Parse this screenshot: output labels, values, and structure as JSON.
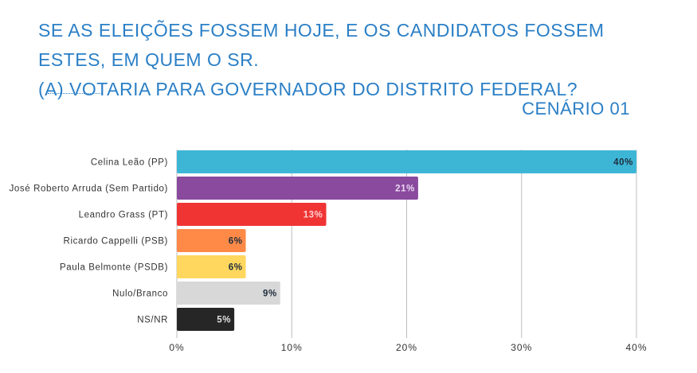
{
  "title_line1": "SE AS ELEIÇÕES FOSSEM HOJE, E OS CANDIDATOS FOSSEM ESTES, EM QUEM O SR.",
  "title_line2": "(A) VOTARIA PARA GOVERNADOR DO DISTRITO FEDERAL?",
  "subtitle": "CENÁRIO 01",
  "chart_data": {
    "type": "bar",
    "orientation": "horizontal",
    "categories": [
      "Celina Leão (PP)",
      "José Roberto Arruda (Sem Partido)",
      "Leandro Grass (PT)",
      "Ricardo Cappelli (PSB)",
      "Paula Belmonte (PSDB)",
      "Nulo/Branco",
      "NS/NR"
    ],
    "values": [
      40,
      21,
      13,
      6,
      6,
      9,
      5
    ],
    "data_labels": [
      "40%",
      "21%",
      "13%",
      "6%",
      "6%",
      "9%",
      "5%"
    ],
    "colors": [
      "#3db6d6",
      "#8a4a9e",
      "#f03434",
      "#ff8a48",
      "#ffd75e",
      "#d8d8d8",
      "#262626"
    ],
    "label_colors": [
      "#1f2d3d",
      "#e9d8f2",
      "#ffd0d0",
      "#1f2d3d",
      "#1f2d3d",
      "#1f2d3d",
      "#e0e0e0"
    ],
    "xlim": [
      0,
      40
    ],
    "xticks": [
      0,
      10,
      20,
      30,
      40
    ],
    "xtick_labels": [
      "0%",
      "10%",
      "20%",
      "30%",
      "40%"
    ],
    "grid": "vertical",
    "title": "",
    "xlabel": "",
    "ylabel": ""
  }
}
